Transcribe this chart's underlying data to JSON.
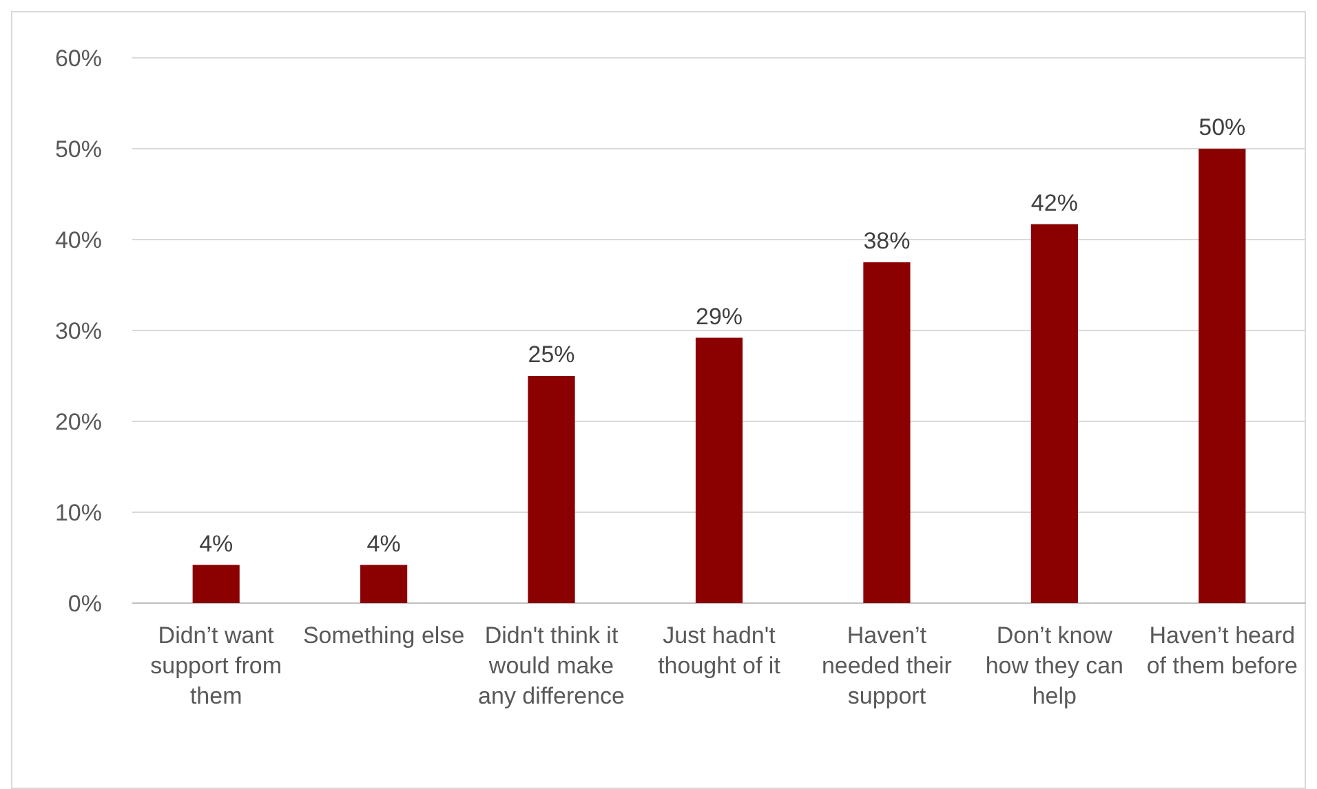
{
  "chart_data": {
    "type": "bar",
    "categories": [
      "Didn’t want support from them",
      "Something else",
      "Didn't think it would make any difference",
      "Just hadn't thought of it",
      "Haven’t needed their support",
      "Don’t know how they can help",
      "Haven’t heard of them before"
    ],
    "values": [
      4.2,
      4.2,
      25,
      29.2,
      37.5,
      41.7,
      50
    ],
    "value_labels": [
      "4%",
      "4%",
      "25%",
      "29%",
      "38%",
      "42%",
      "50%"
    ],
    "color": "#8b0000",
    "ylim": [
      0,
      60
    ],
    "yticks": [
      {
        "value": 0,
        "label": "0%"
      },
      {
        "value": 10,
        "label": "10%"
      },
      {
        "value": 20,
        "label": "20%"
      },
      {
        "value": 30,
        "label": "30%"
      },
      {
        "value": 40,
        "label": "40%"
      },
      {
        "value": 50,
        "label": "50%"
      },
      {
        "value": 60,
        "label": "60%"
      }
    ],
    "grid": "y"
  }
}
